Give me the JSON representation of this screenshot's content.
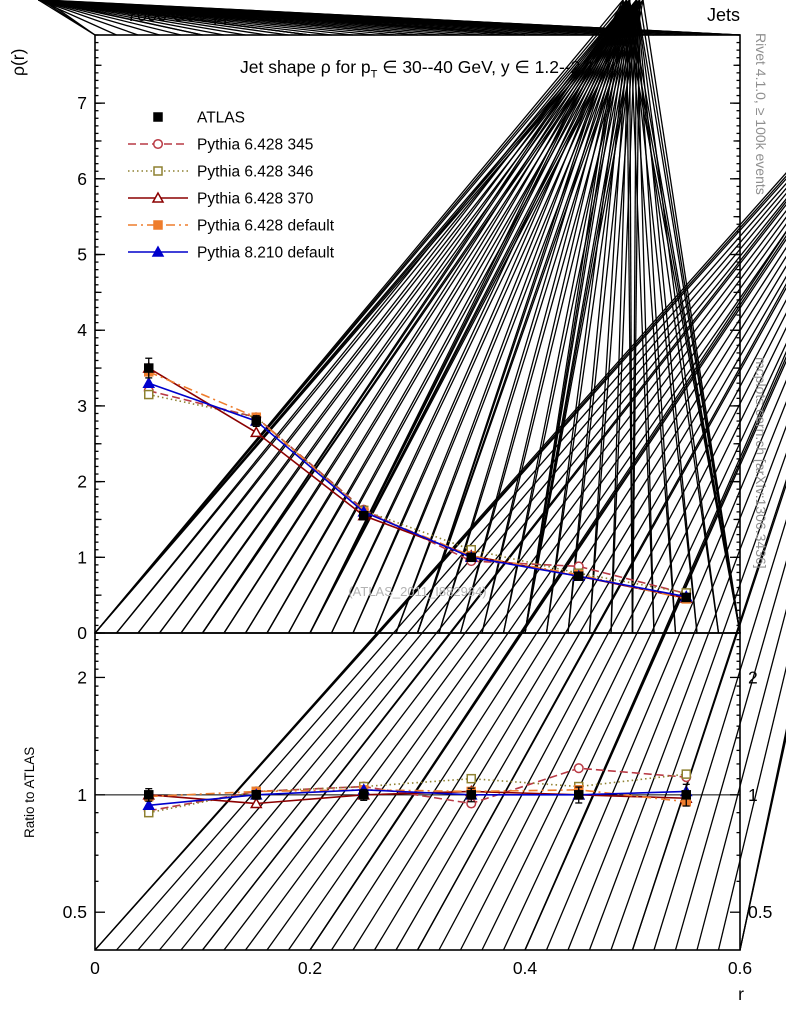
{
  "header": {
    "left": "7000 GeV pp",
    "right": "Jets"
  },
  "labels": {
    "y_main": "ρ(r)",
    "y_ratio": "Ratio to ATLAS",
    "x": "r",
    "title_pre": "Jet shape ρ for p",
    "title_sub": "T",
    "title_post": " ∈ 30--40 GeV, y ∈ 1.2--2.1",
    "watermark": "(ATLAS_2011_I882984)",
    "credit_top": "Rivet 4.1.0, ≥ 100k events",
    "credit_bottom": "mcplots.cern.ch [arXiv:1306.3436]"
  },
  "chart_data": {
    "type": "line",
    "x": [
      0.05,
      0.15,
      0.25,
      0.35,
      0.45,
      0.55
    ],
    "x_axis": {
      "min": 0,
      "max": 0.6,
      "majors": [
        0,
        0.2,
        0.4,
        0.6
      ],
      "labels": [
        "0",
        "0.2",
        "0.4",
        "0.6"
      ],
      "major_step": 0.2,
      "mid_step": 0.1,
      "minor_step": 0.02,
      "label": "r"
    },
    "y_main": {
      "min": 0,
      "max": 7.9,
      "majors": [
        0,
        1,
        2,
        3,
        4,
        5,
        6,
        7
      ],
      "labels": [
        "0",
        "1",
        "2",
        "3",
        "4",
        "5",
        "6",
        "7"
      ],
      "major_step": 1,
      "mid_step": 0.5,
      "minor_step": 0.1,
      "label": "ρ(r)"
    },
    "y_ratio": {
      "min": 0.4,
      "max": 2.6,
      "scale": "log",
      "majors": [
        0.5,
        1,
        2
      ],
      "labels": [
        "0.5",
        "1",
        "2"
      ],
      "minors": [
        0.6,
        0.7,
        0.8,
        0.9,
        1.1,
        1.2,
        1.3,
        1.4,
        1.5,
        1.6,
        1.7,
        1.8,
        1.9,
        2.1,
        2.2,
        2.3,
        2.4,
        2.5
      ],
      "reference": 1,
      "label": "Ratio to ATLAS"
    },
    "series": [
      {
        "id": "atlas",
        "name": "ATLAS",
        "color": "#000000",
        "line": "none",
        "marker": "square",
        "filled": true,
        "values": [
          3.5,
          2.8,
          1.55,
          1.0,
          0.75,
          0.47
        ],
        "errors": [
          0.13,
          0.07,
          0.05,
          0.04,
          0.035,
          0.03
        ],
        "ratio": [
          1.0,
          1.0,
          1.0,
          1.0,
          1.0,
          1.0
        ],
        "ratio_errors": [
          0.037,
          0.025,
          0.032,
          0.04,
          0.047,
          0.064
        ]
      },
      {
        "id": "pythia6-345",
        "name": "Pythia 6.428 345",
        "color": "#b93a45",
        "line": "dashed",
        "marker": "circle",
        "filled": false,
        "values": [
          3.2,
          2.85,
          1.63,
          0.95,
          0.88,
          0.52
        ],
        "ratio": [
          0.91,
          1.02,
          1.05,
          0.95,
          1.17,
          1.11
        ]
      },
      {
        "id": "pythia6-346",
        "name": "Pythia 6.428 346",
        "color": "#8e8030",
        "line": "dotted",
        "marker": "square",
        "filled": false,
        "values": [
          3.15,
          2.85,
          1.62,
          1.1,
          0.79,
          0.53
        ],
        "ratio": [
          0.9,
          1.02,
          1.05,
          1.1,
          1.05,
          1.13
        ]
      },
      {
        "id": "pythia6-370",
        "name": "Pythia 6.428 370",
        "color": "#8b0000",
        "line": "solid",
        "marker": "triangle",
        "filled": false,
        "values": [
          3.5,
          2.65,
          1.55,
          1.02,
          0.75,
          0.46
        ],
        "ratio": [
          1.0,
          0.95,
          1.0,
          1.02,
          1.0,
          0.98
        ]
      },
      {
        "id": "pythia6-default",
        "name": "Pythia 6.428 default",
        "color": "#ee7d2d",
        "line": "dashdot",
        "marker": "square",
        "filled": true,
        "values": [
          3.45,
          2.85,
          1.6,
          1.02,
          0.77,
          0.45
        ],
        "ratio": [
          0.99,
          1.02,
          1.03,
          1.02,
          1.03,
          0.96
        ]
      },
      {
        "id": "pythia8-default",
        "name": "Pythia 8.210 default",
        "color": "#0000cc",
        "line": "solid",
        "marker": "triangle",
        "filled": true,
        "values": [
          3.3,
          2.8,
          1.6,
          1.0,
          0.75,
          0.48
        ],
        "ratio": [
          0.94,
          1.0,
          1.03,
          1.0,
          1.0,
          1.02
        ]
      }
    ],
    "title": "Jet shape ρ for p_T ∈ 30--40 GeV, y ∈ 1.2--2.1",
    "legend_position": "top-left"
  }
}
